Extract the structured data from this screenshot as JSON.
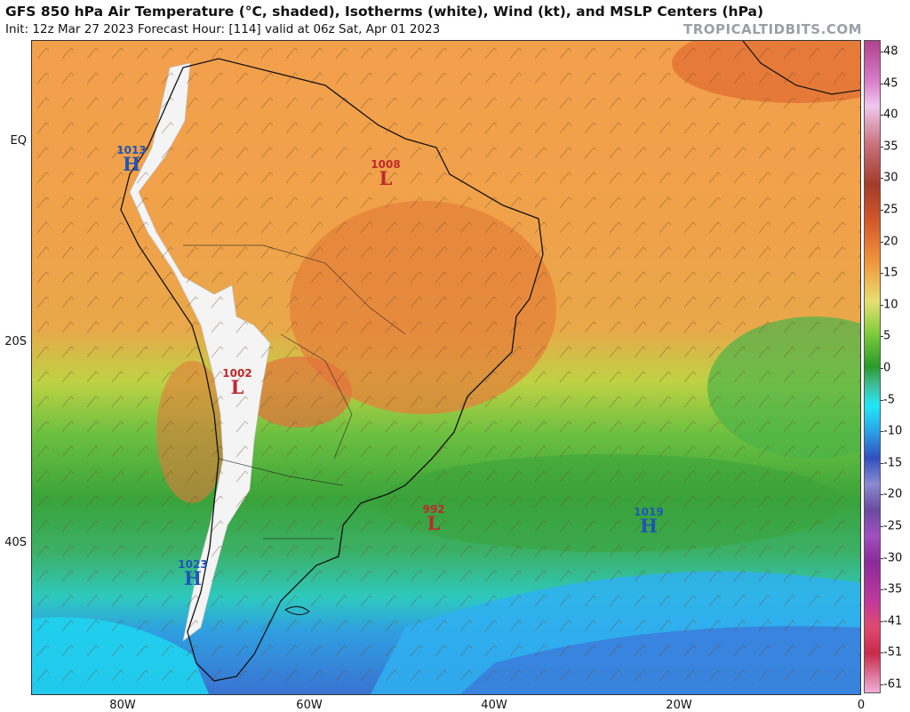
{
  "header": {
    "title": "GFS 850 hPa Air Temperature (°C, shaded), Isotherms (white), Wind (kt), and MSLP Centers (hPa)",
    "subtitle": "Init: 12z Mar 27 2023   Forecast Hour: [114]   valid at 06z Sat, Apr 01 2023",
    "credit": "TROPICALTIDBITS.COM"
  },
  "axes": {
    "lat_labels": [
      "EQ",
      "20S",
      "40S"
    ],
    "lon_labels": [
      "80W",
      "60W",
      "40W",
      "20W",
      "0"
    ]
  },
  "colorbar": {
    "labels": [
      "48",
      "45",
      "40",
      "35",
      "30",
      "25",
      "20",
      "15",
      "10",
      "5",
      "0",
      "-5",
      "-10",
      "-15",
      "-20",
      "-25",
      "-30",
      "-35",
      "-41",
      "-51",
      "-61"
    ]
  },
  "pressure_centers": [
    {
      "kind": "high",
      "value": "1013",
      "symbol": "H"
    },
    {
      "kind": "low",
      "value": "1008",
      "symbol": "L"
    },
    {
      "kind": "low",
      "value": "1002",
      "symbol": "L"
    },
    {
      "kind": "low",
      "value": "992",
      "symbol": "L"
    },
    {
      "kind": "high",
      "value": "1019",
      "symbol": "H"
    },
    {
      "kind": "high",
      "value": "1023",
      "symbol": "H"
    }
  ],
  "colors": {
    "hot": "#e8863a",
    "warm": "#f0a54a",
    "mild": "#c8d040",
    "cool_green": "#3aa53a",
    "teal": "#45c8a0",
    "cyan": "#20d8f0",
    "blue": "#3a78d8",
    "andes_snow": "#f4f4f4"
  }
}
